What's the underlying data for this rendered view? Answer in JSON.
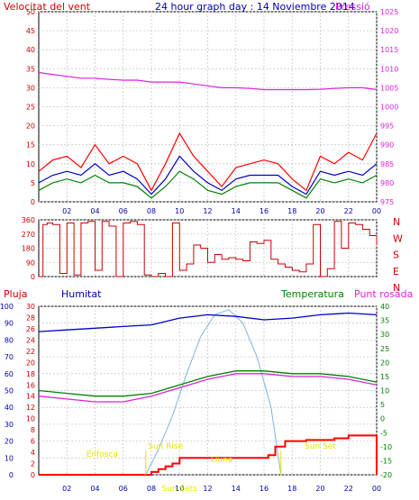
{
  "header": {
    "left_title": "Velocitat del vent",
    "center_title": "24 hour graph day : 14 Noviembre 2014",
    "right_title": "Pressió"
  },
  "colors": {
    "wind": "#ff0000",
    "wind_avg": "#0000cc",
    "wind_green": "#008000",
    "pressure": "#dd22dd",
    "direction": "#cc0000",
    "humidity": "#0000cc",
    "temperature": "#008000",
    "dewpoint": "#dd22dd",
    "rain": "#ff0000",
    "sun_curve": "#7fb2e6",
    "annotation": "#e6e600"
  },
  "panel3_labels": {
    "rain": "Pluja",
    "humidity": "Humitat",
    "temperature": "Temperatura",
    "dewpoint": "Punt rosada"
  },
  "chart_data": [
    {
      "type": "line",
      "title": "24 hour graph day : 14 Noviembre 2014",
      "ylabel": "Velocitat del vent",
      "y2label": "Pressió",
      "ylim": [
        0,
        50
      ],
      "y2lim": [
        975,
        1025
      ],
      "yticks": [
        "0",
        "5",
        "10",
        "15",
        "20",
        "25",
        "30",
        "35",
        "40",
        "45",
        "50"
      ],
      "y2ticks": [
        "975",
        "980",
        "985",
        "990",
        "995",
        "1000",
        "1005",
        "1010",
        "1015",
        "1020",
        "1025"
      ],
      "xticks": [
        "02",
        "04",
        "06",
        "08",
        "10",
        "12",
        "14",
        "16",
        "18",
        "20",
        "22",
        "00"
      ],
      "grid": true,
      "series": [
        {
          "name": "Pressió",
          "axis": "right",
          "x": [
            0,
            1,
            2,
            3,
            4,
            5,
            6,
            7,
            8,
            9,
            10,
            11,
            12,
            13,
            14,
            15,
            16,
            17,
            18,
            19,
            20,
            21,
            22,
            23,
            24
          ],
          "values": [
            1009,
            1008.5,
            1008,
            1007.5,
            1007.5,
            1007.2,
            1007,
            1007,
            1006.5,
            1006.5,
            1006.5,
            1006,
            1005.5,
            1005,
            1005,
            1004.8,
            1004.5,
            1004.5,
            1004.5,
            1004.5,
            1004.6,
            1004.8,
            1005,
            1005,
            1004.5
          ]
        },
        {
          "x": [
            0,
            1,
            2,
            3,
            4,
            5,
            6,
            7,
            8,
            9,
            10,
            11,
            12,
            13,
            14,
            15,
            16,
            17,
            18,
            19,
            20,
            21,
            22,
            23,
            24
          ],
          "values": [
            8,
            11,
            12,
            9,
            15,
            10,
            12,
            10,
            3,
            10,
            18,
            12,
            8,
            4,
            9,
            10,
            11,
            10,
            6,
            3,
            12,
            10,
            13,
            11,
            18
          ]
        },
        {
          "x": [
            0,
            1,
            2,
            3,
            4,
            5,
            6,
            7,
            8,
            9,
            10,
            11,
            12,
            13,
            14,
            15,
            16,
            17,
            18,
            19,
            20,
            21,
            22,
            23,
            24
          ],
          "values": [
            5,
            7,
            8,
            7,
            10,
            7,
            8,
            6,
            2,
            6,
            12,
            8,
            5,
            3,
            6,
            7,
            7,
            7,
            4,
            2,
            8,
            7,
            8,
            7,
            10
          ]
        },
        {
          "x": [
            0,
            1,
            2,
            3,
            4,
            5,
            6,
            7,
            8,
            9,
            10,
            11,
            12,
            13,
            14,
            15,
            16,
            17,
            18,
            19,
            20,
            21,
            22,
            23,
            24
          ],
          "values": [
            3,
            5,
            6,
            5,
            7,
            5,
            5,
            4,
            1,
            4,
            8,
            6,
            3,
            2,
            4,
            5,
            5,
            5,
            3,
            1,
            6,
            5,
            6,
            5,
            7
          ]
        }
      ]
    },
    {
      "type": "line",
      "ylim": [
        0,
        360
      ],
      "yticks": [
        "0",
        "90",
        "180",
        "270",
        "360"
      ],
      "compass": [
        "N",
        "W",
        "S",
        "E",
        "N"
      ],
      "series": [
        {
          "x": [
            0,
            0.3,
            0.6,
            1,
            1.5,
            2,
            2.5,
            3,
            3.5,
            4,
            4.5,
            5,
            5.5,
            6,
            6.5,
            7,
            7.5,
            8,
            8.5,
            9,
            9.5,
            10,
            10.5,
            11,
            11.5,
            12,
            12.5,
            13,
            13.5,
            14,
            14.5,
            15,
            15.5,
            16,
            16.5,
            17,
            17.5,
            18,
            18.5,
            19,
            19.5,
            20,
            20.5,
            21,
            21.5,
            22,
            22.5,
            23,
            23.5,
            24
          ],
          "values": [
            0,
            330,
            340,
            330,
            20,
            340,
            10,
            340,
            350,
            40,
            350,
            320,
            0,
            340,
            350,
            330,
            10,
            0,
            20,
            0,
            340,
            40,
            80,
            200,
            180,
            90,
            140,
            110,
            120,
            110,
            100,
            220,
            210,
            230,
            110,
            80,
            60,
            40,
            30,
            80,
            330,
            0,
            50,
            350,
            180,
            340,
            330,
            300,
            260,
            200
          ]
        }
      ]
    },
    {
      "type": "line",
      "ylim": [
        0,
        100
      ],
      "y2lim": [
        0,
        30
      ],
      "y3lim": [
        -20,
        40
      ],
      "yticks": [
        "0",
        "10",
        "20",
        "30",
        "40",
        "50",
        "60",
        "70",
        "80",
        "90",
        "100"
      ],
      "y2ticks": [
        "0",
        "2",
        "4",
        "6",
        "8",
        "10",
        "12",
        "14",
        "16",
        "18",
        "20",
        "22",
        "24",
        "26",
        "28",
        "30"
      ],
      "y3ticks": [
        "-20",
        "-15",
        "-10",
        "-5",
        "0",
        "5",
        "10",
        "15",
        "20",
        "25",
        "30",
        "35",
        "40"
      ],
      "xticks": [
        "02",
        "04",
        "06",
        "08",
        "10",
        "12",
        "14",
        "16",
        "18",
        "20",
        "22",
        "00"
      ],
      "series": [
        {
          "name": "Humitat",
          "axis": "left",
          "x": [
            0,
            2,
            4,
            6,
            8,
            10,
            12,
            14,
            16,
            18,
            20,
            22,
            24
          ],
          "values": [
            85,
            86,
            87,
            88,
            89,
            93,
            95,
            94,
            92,
            93,
            95,
            96,
            95
          ]
        },
        {
          "name": "Temperatura",
          "axis": "right",
          "x": [
            0,
            2,
            4,
            6,
            8,
            10,
            12,
            14,
            16,
            18,
            20,
            22,
            24
          ],
          "values": [
            10,
            9,
            8,
            8,
            9,
            12,
            15,
            17,
            17,
            16,
            16,
            15,
            13
          ]
        },
        {
          "name": "Punt rosada",
          "axis": "right",
          "x": [
            0,
            2,
            4,
            6,
            8,
            10,
            12,
            14,
            16,
            18,
            20,
            22,
            24
          ],
          "values": [
            8,
            7,
            6,
            6,
            8,
            11,
            14,
            16,
            16,
            15,
            15,
            14,
            12
          ]
        },
        {
          "name": "Pluja",
          "axis": "rain",
          "x": [
            0,
            6,
            7.5,
            8,
            8.5,
            9,
            9.5,
            10,
            12,
            14,
            16,
            16.3,
            16.8,
            17.5,
            19,
            21,
            22,
            24,
            24
          ],
          "values": [
            0,
            0,
            0,
            0.5,
            1,
            1.5,
            2,
            3,
            3,
            3,
            3,
            3.5,
            5,
            6,
            6.2,
            6.5,
            7,
            7,
            0
          ]
        },
        {
          "x": [
            7.6,
            8.5,
            9.5,
            10.5,
            11.5,
            12.5,
            13.5,
            14.5,
            15.5,
            16.5,
            17.2
          ],
          "values": [
            0,
            15,
            35,
            60,
            82,
            95,
            98,
            90,
            70,
            40,
            0
          ]
        }
      ],
      "annotations": [
        "Enfosca",
        "Sun Rise",
        "Sun Sets",
        "Sun Set",
        "Lluna"
      ]
    }
  ]
}
